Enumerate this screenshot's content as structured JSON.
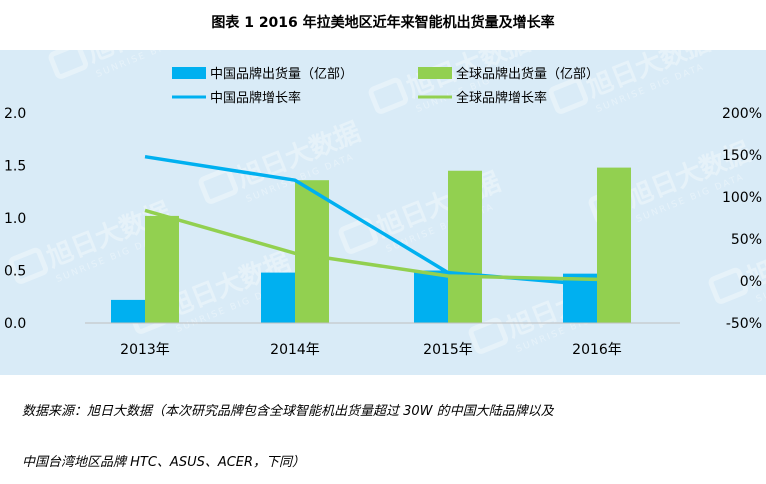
{
  "title": "图表 1    2016 年拉美地区近年来智能机出货量及增长率",
  "source_note": {
    "line1": "数据来源：旭日大数据（本次研究品牌包含全球智能机出货量超过 30W 的中国大陆品牌以及",
    "line2": "中国台湾地区品牌 HTC、ASUS、ACER，下同）"
  },
  "watermark": {
    "text_cn": "旭日大数据",
    "text_en": "SUNRISE BIG DATA"
  },
  "chart_data": {
    "type": "bar",
    "title": "图表 1    2016 年拉美地区近年来智能机出货量及增长率",
    "categories": [
      "2013年",
      "2014年",
      "2015年",
      "2016年"
    ],
    "series": [
      {
        "name": "中国品牌出货量（亿部）",
        "type": "bar",
        "axis": "left",
        "color": "#00b0f0",
        "values": [
          0.22,
          0.48,
          0.5,
          0.47
        ]
      },
      {
        "name": "全球品牌出货量（亿部）",
        "type": "bar",
        "axis": "left",
        "color": "#92d050",
        "values": [
          1.02,
          1.36,
          1.45,
          1.48
        ]
      },
      {
        "name": "中国品牌增长率",
        "type": "line",
        "axis": "right",
        "color": "#00b0f0",
        "values": [
          148,
          120,
          10,
          -5
        ]
      },
      {
        "name": "全球品牌增长率",
        "type": "line",
        "axis": "right",
        "color": "#92d050",
        "values": [
          84,
          33,
          6,
          2
        ]
      }
    ],
    "y_left": {
      "min": 0,
      "max": 2.0,
      "ticks": [
        "0.0",
        "0.5",
        "1.0",
        "1.5",
        "2.0"
      ]
    },
    "y_right": {
      "min": -50,
      "max": 200,
      "ticks": [
        "-50%",
        "0%",
        "50%",
        "100%",
        "150%",
        "200%"
      ]
    },
    "grid": false,
    "legend_position": "top"
  }
}
